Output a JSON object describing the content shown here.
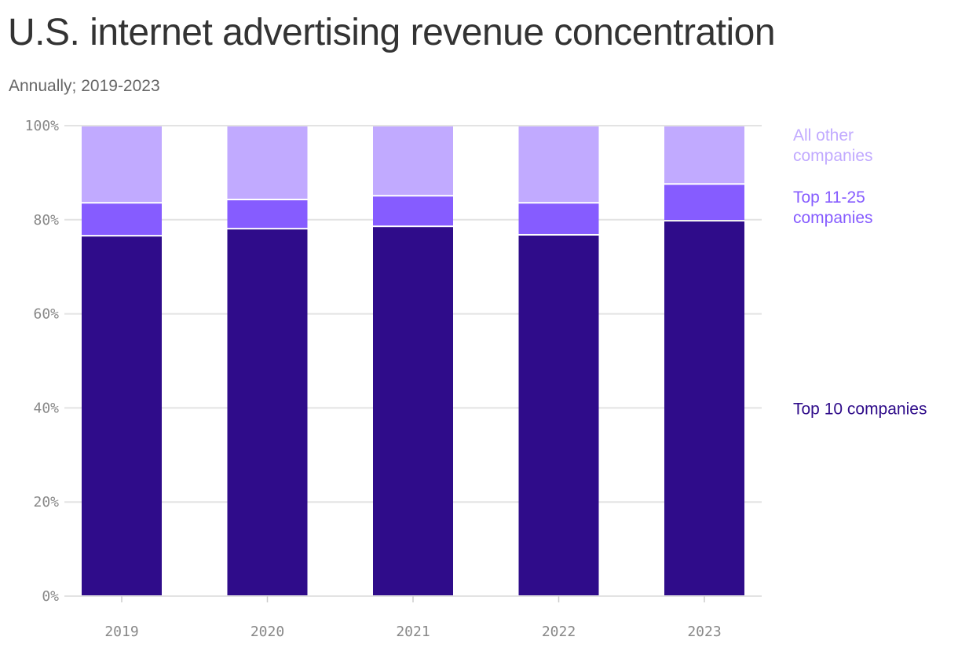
{
  "title": "U.S. internet advertising revenue concentration",
  "subtitle": "Annually; 2019-2023",
  "chart_data": {
    "type": "bar",
    "stacked": true,
    "categories": [
      "2019",
      "2020",
      "2021",
      "2022",
      "2023"
    ],
    "series": [
      {
        "name": "Top 10 companies",
        "values": [
          76.6,
          78.1,
          78.6,
          76.8,
          79.8
        ],
        "color": "#2f0c8a",
        "label_lines": [
          "Top 10 companies"
        ]
      },
      {
        "name": "Top 11-25 companies",
        "values": [
          7.0,
          6.2,
          6.5,
          6.8,
          7.8
        ],
        "color": "#865cff",
        "label_lines": [
          "Top 11-25",
          "companies"
        ]
      },
      {
        "name": "All other companies",
        "values": [
          16.4,
          15.7,
          14.9,
          16.4,
          12.4
        ],
        "color": "#c1aaff",
        "label_lines": [
          "All other",
          "companies"
        ]
      }
    ],
    "yticks": [
      "0%",
      "20%",
      "40%",
      "60%",
      "80%",
      "100%"
    ],
    "ylim": [
      0,
      100
    ],
    "grid": true,
    "legend": "right, direct labels"
  }
}
